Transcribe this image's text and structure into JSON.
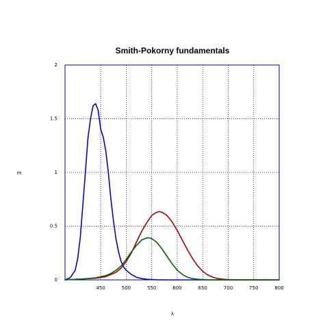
{
  "chart_data": {
    "type": "line",
    "title": "Smith-Pokorny fundamentals",
    "xlabel": "λ",
    "ylabel": "m",
    "xlim": [
      380,
      800
    ],
    "ylim": [
      0,
      2
    ],
    "xticks": [
      "450",
      "500",
      "550",
      "600",
      "650",
      "700",
      "750",
      "800"
    ],
    "yticks": [
      "0",
      "0.5",
      "1",
      "1.5",
      "2"
    ],
    "grid": true,
    "colors": {
      "frame": "#0000aa",
      "grid": "#0000aa"
    },
    "series": [
      {
        "color": "#0000dd",
        "x": [
          380,
          390,
          400,
          405,
          410,
          415,
          420,
          425,
          430,
          435,
          440,
          445,
          450,
          455,
          460,
          465,
          470,
          475,
          480,
          485,
          490,
          495,
          500,
          510,
          520,
          530,
          540,
          550,
          560,
          580,
          600,
          650,
          700,
          800
        ],
        "y": [
          0.0,
          0.02,
          0.09,
          0.2,
          0.4,
          0.7,
          1.0,
          1.32,
          1.5,
          1.62,
          1.64,
          1.58,
          1.4,
          1.33,
          1.2,
          1.0,
          0.75,
          0.55,
          0.38,
          0.26,
          0.17,
          0.12,
          0.09,
          0.05,
          0.025,
          0.012,
          0.006,
          0.003,
          0.001,
          0.0,
          0.0,
          0.0,
          0.0,
          0.0
        ]
      },
      {
        "color": "#aa0000",
        "x": [
          380,
          400,
          420,
          440,
          460,
          480,
          490,
          500,
          510,
          520,
          530,
          540,
          550,
          560,
          565,
          570,
          580,
          590,
          600,
          610,
          620,
          630,
          640,
          650,
          660,
          670,
          680,
          690,
          700,
          720,
          800
        ],
        "y": [
          0.0,
          0.005,
          0.01,
          0.015,
          0.03,
          0.07,
          0.11,
          0.17,
          0.25,
          0.35,
          0.45,
          0.53,
          0.6,
          0.63,
          0.635,
          0.63,
          0.6,
          0.54,
          0.46,
          0.37,
          0.28,
          0.2,
          0.13,
          0.08,
          0.045,
          0.025,
          0.012,
          0.006,
          0.003,
          0.001,
          0.0
        ]
      },
      {
        "color": "#006600",
        "x": [
          380,
          400,
          420,
          440,
          460,
          470,
          480,
          490,
          500,
          510,
          520,
          530,
          540,
          545,
          550,
          560,
          570,
          580,
          590,
          600,
          610,
          620,
          630,
          640,
          650,
          660,
          680,
          800
        ],
        "y": [
          0.0,
          0.005,
          0.01,
          0.02,
          0.04,
          0.06,
          0.09,
          0.13,
          0.19,
          0.26,
          0.32,
          0.37,
          0.39,
          0.392,
          0.385,
          0.35,
          0.29,
          0.22,
          0.15,
          0.09,
          0.05,
          0.025,
          0.012,
          0.006,
          0.003,
          0.001,
          0.0,
          0.0
        ]
      }
    ]
  }
}
